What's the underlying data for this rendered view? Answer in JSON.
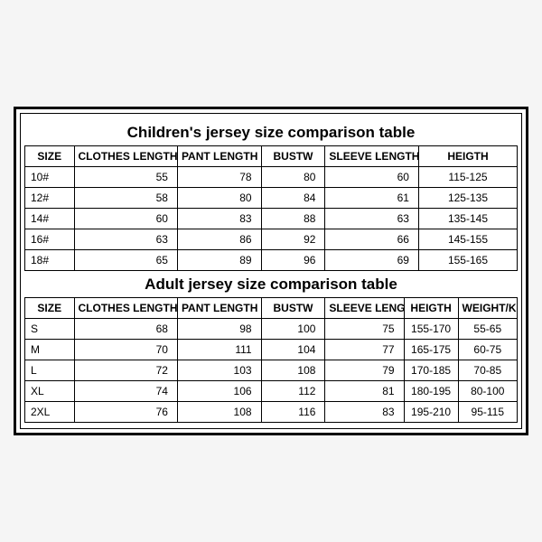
{
  "children": {
    "title": "Children's jersey size comparison table",
    "columns": [
      "SIZE",
      "CLOTHES LENGTH",
      "PANT LENGTH",
      "BUSTW",
      "SLEEVE LENGTH",
      "HEIGTH"
    ],
    "rows": [
      {
        "size": "10#",
        "clothes": "55",
        "pant": "78",
        "bust": "80",
        "sleeve": "60",
        "height": "115-125"
      },
      {
        "size": "12#",
        "clothes": "58",
        "pant": "80",
        "bust": "84",
        "sleeve": "61",
        "height": "125-135"
      },
      {
        "size": "14#",
        "clothes": "60",
        "pant": "83",
        "bust": "88",
        "sleeve": "63",
        "height": "135-145"
      },
      {
        "size": "16#",
        "clothes": "63",
        "pant": "86",
        "bust": "92",
        "sleeve": "66",
        "height": "145-155"
      },
      {
        "size": "18#",
        "clothes": "65",
        "pant": "89",
        "bust": "96",
        "sleeve": "69",
        "height": "155-165"
      }
    ]
  },
  "adult": {
    "title": "Adult jersey size comparison table",
    "columns": [
      "SIZE",
      "CLOTHES LENGTH",
      "PANT LENGTH",
      "BUSTW",
      "SLEEVE LENGTH",
      "HEIGTH",
      "WEIGHT/KG"
    ],
    "rows": [
      {
        "size": "S",
        "clothes": "68",
        "pant": "98",
        "bust": "100",
        "sleeve": "75",
        "height": "155-170",
        "weight": "55-65"
      },
      {
        "size": "M",
        "clothes": "70",
        "pant": "111",
        "bust": "104",
        "sleeve": "77",
        "height": "165-175",
        "weight": "60-75"
      },
      {
        "size": "L",
        "clothes": "72",
        "pant": "103",
        "bust": "108",
        "sleeve": "79",
        "height": "170-185",
        "weight": "70-85"
      },
      {
        "size": "XL",
        "clothes": "74",
        "pant": "106",
        "bust": "112",
        "sleeve": "81",
        "height": "180-195",
        "weight": "80-100"
      },
      {
        "size": "2XL",
        "clothes": "76",
        "pant": "108",
        "bust": "116",
        "sleeve": "83",
        "height": "195-210",
        "weight": "95-115"
      }
    ]
  },
  "style": {
    "border_color": "#000000",
    "background_color": "#ffffff",
    "title_fontsize": 17,
    "cell_fontsize": 12
  }
}
